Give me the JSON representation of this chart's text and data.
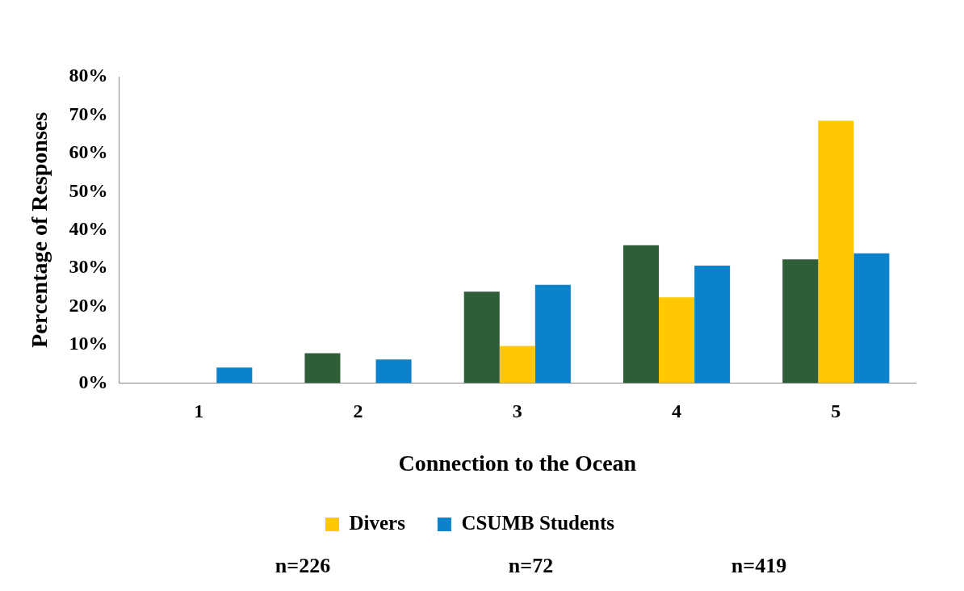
{
  "chart_data": {
    "type": "bar",
    "xlabel": "Connection to the Ocean",
    "ylabel": "Percentage of Responses",
    "categories": [
      "1",
      "2",
      "3",
      "4",
      "5"
    ],
    "series": [
      {
        "color": "#2e5e38",
        "values": [
          0,
          7.8,
          23.9,
          36.0,
          32.3
        ]
      },
      {
        "name": "Divers",
        "color": "#ffc800",
        "values": [
          0,
          0,
          9.7,
          22.4,
          68.5
        ]
      },
      {
        "name": "CSUMB Students",
        "color": "#0c82cc",
        "values": [
          4.1,
          6.2,
          25.7,
          30.7,
          33.9
        ]
      }
    ],
    "ylim": [
      0,
      80
    ],
    "yticks": [
      {
        "value": 0,
        "label": "0%"
      },
      {
        "value": 10,
        "label": "10%"
      },
      {
        "value": 20,
        "label": "20%"
      },
      {
        "value": 30,
        "label": "30%"
      },
      {
        "value": 40,
        "label": "40%"
      },
      {
        "value": 50,
        "label": "50%"
      },
      {
        "value": 60,
        "label": "60%"
      },
      {
        "value": 70,
        "label": "70%"
      },
      {
        "value": 80,
        "label": "80%"
      }
    ],
    "grid": false,
    "legend": "bottom",
    "annotations": [
      "n=226",
      "n=72",
      "n=419"
    ]
  }
}
